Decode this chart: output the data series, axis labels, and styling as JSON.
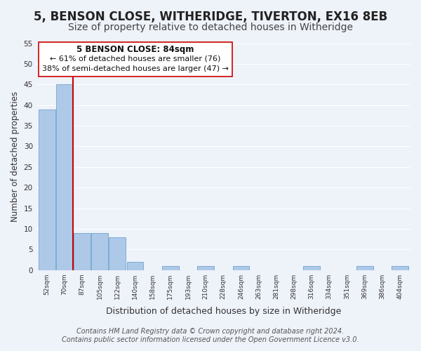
{
  "title": "5, BENSON CLOSE, WITHERIDGE, TIVERTON, EX16 8EB",
  "subtitle": "Size of property relative to detached houses in Witheridge",
  "xlabel": "Distribution of detached houses by size in Witheridge",
  "ylabel": "Number of detached properties",
  "bar_color": "#aec9e8",
  "bar_edge_color": "#7aadd4",
  "vline_color": "#cc0000",
  "vline_x_index": 2,
  "bin_labels": [
    "52sqm",
    "70sqm",
    "87sqm",
    "105sqm",
    "122sqm",
    "140sqm",
    "158sqm",
    "175sqm",
    "193sqm",
    "210sqm",
    "228sqm",
    "246sqm",
    "263sqm",
    "281sqm",
    "298sqm",
    "316sqm",
    "334sqm",
    "351sqm",
    "369sqm",
    "386sqm",
    "404sqm"
  ],
  "bar_heights": [
    39,
    45,
    9,
    9,
    8,
    2,
    0,
    1,
    0,
    1,
    0,
    1,
    0,
    0,
    0,
    1,
    0,
    0,
    1,
    0,
    1
  ],
  "ylim": [
    0,
    55
  ],
  "yticks": [
    0,
    5,
    10,
    15,
    20,
    25,
    30,
    35,
    40,
    45,
    50,
    55
  ],
  "annotation_title": "5 BENSON CLOSE: 84sqm",
  "annotation_line1": "← 61% of detached houses are smaller (76)",
  "annotation_line2": "38% of semi-detached houses are larger (47) →",
  "annotation_box_color": "#ffffff",
  "annotation_box_edge": "#cc0000",
  "footer_line1": "Contains HM Land Registry data © Crown copyright and database right 2024.",
  "footer_line2": "Contains public sector information licensed under the Open Government Licence v3.0.",
  "background_color": "#eef2f9",
  "grid_color": "#ffffff",
  "title_fontsize": 12,
  "subtitle_fontsize": 10,
  "footer_fontsize": 7
}
